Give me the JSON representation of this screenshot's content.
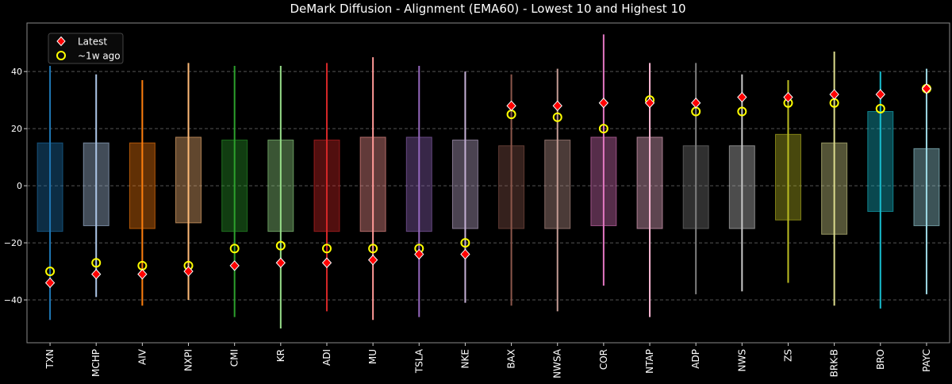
{
  "chart_data": {
    "type": "box-range",
    "title": "DeMark Diffusion - Alignment (EMA60) - Lowest 10 and Highest 10",
    "xlabel": "",
    "ylabel": "",
    "ylim": [
      -55,
      57
    ],
    "yticks": [
      -40,
      -20,
      0,
      20,
      40
    ],
    "grid": "horizontal-dashed",
    "legend_position": "top-left",
    "legend": [
      {
        "key": "latest",
        "label": "Latest",
        "marker": "diamond",
        "color": "#ff0000",
        "edge": "#ffffff"
      },
      {
        "key": "week_ago",
        "label": "~1w ago",
        "marker": "circle",
        "color": "none",
        "edge": "#ffff00"
      }
    ],
    "categories": [
      "TXN",
      "MCHP",
      "AIV",
      "NXPI",
      "CMI",
      "KR",
      "ADI",
      "MU",
      "TSLA",
      "NKE",
      "BAX",
      "NWSA",
      "COR",
      "NTAP",
      "ADP",
      "NWS",
      "ZS",
      "BRK-B",
      "BRO",
      "PAYC"
    ],
    "colors": [
      "#1f77b4",
      "#aec7e8",
      "#ff7f0e",
      "#ffbb78",
      "#2ca02c",
      "#98df8a",
      "#d62728",
      "#ff9896",
      "#9467bd",
      "#c5b0d5",
      "#8c564b",
      "#c49c94",
      "#e377c2",
      "#f7b6d2",
      "#7f7f7f",
      "#c7c7c7",
      "#bcbd22",
      "#dbdb8d",
      "#17becf",
      "#9edae5"
    ],
    "whisker_min": [
      -47,
      -39,
      -42,
      -40,
      -46,
      -50,
      -44,
      -47,
      -46,
      -41,
      -42,
      -44,
      -35,
      -46,
      -38,
      -37,
      -34,
      -42,
      -43,
      -38
    ],
    "whisker_max": [
      42,
      39,
      37,
      43,
      42,
      42,
      43,
      45,
      42,
      40,
      39,
      41,
      53,
      43,
      43,
      39,
      37,
      47,
      40,
      41
    ],
    "box_low": [
      -16,
      -14,
      -15,
      -13,
      -16,
      -16,
      -16,
      -16,
      -16,
      -15,
      -15,
      -15,
      -14,
      -15,
      -15,
      -15,
      -12,
      -17,
      -9,
      -14
    ],
    "box_high": [
      15,
      15,
      15,
      17,
      16,
      16,
      16,
      17,
      17,
      16,
      14,
      16,
      17,
      17,
      14,
      14,
      18,
      15,
      26,
      13
    ],
    "latest": [
      -34,
      -31,
      -31,
      -30,
      -28,
      -27,
      -27,
      -26,
      -24,
      -24,
      28,
      28,
      29,
      29,
      29,
      31,
      31,
      32,
      32,
      34
    ],
    "week_ago": [
      -30,
      -27,
      -28,
      -28,
      -22,
      -21,
      -22,
      -22,
      -22,
      -20,
      25,
      24,
      20,
      30,
      26,
      26,
      29,
      29,
      27,
      34
    ]
  }
}
